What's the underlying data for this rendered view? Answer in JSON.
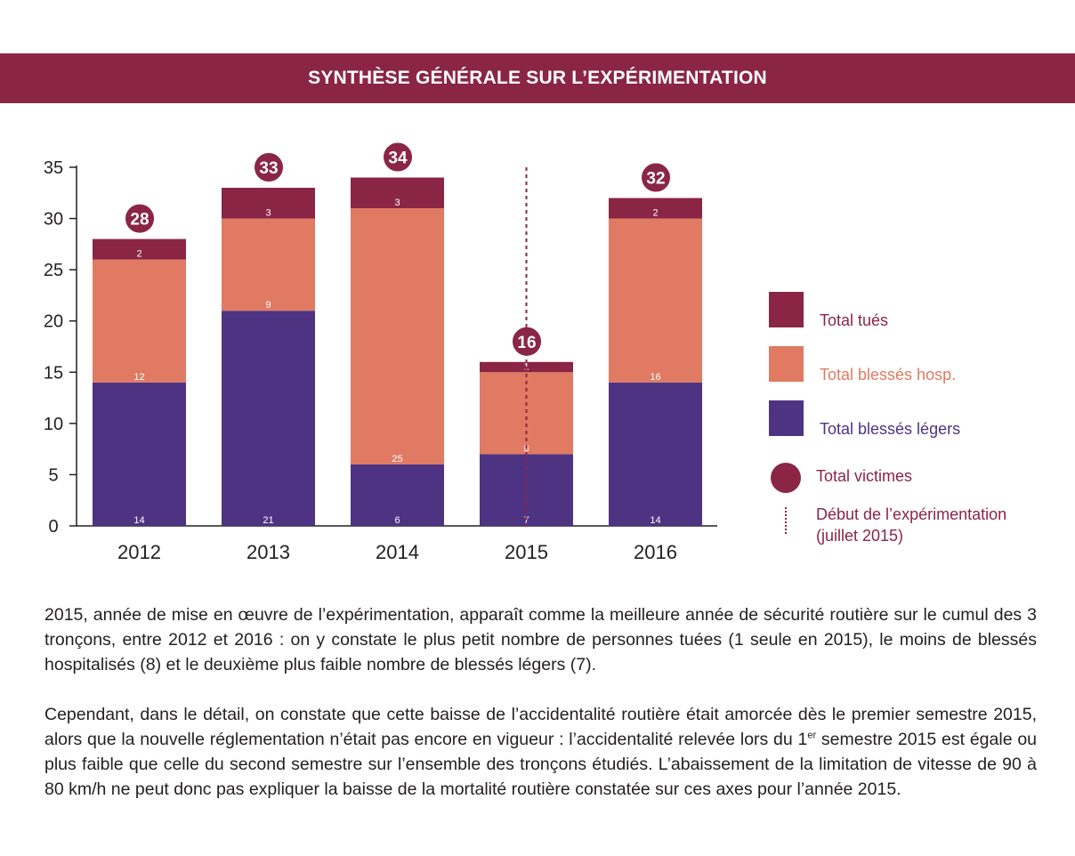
{
  "header": {
    "title": "SYNTHÈSE GÉNÉRALE SUR L’EXPÉRIMENTATION"
  },
  "chart_data": {
    "type": "bar",
    "stacked": true,
    "categories": [
      "2012",
      "2013",
      "2014",
      "2015",
      "2016"
    ],
    "series": [
      {
        "name": "Total blessés légers",
        "color": "#4e3382",
        "values": [
          14,
          21,
          6,
          7,
          14
        ]
      },
      {
        "name": "Total blessés hosp.",
        "color": "#e17a62",
        "values": [
          12,
          9,
          25,
          8,
          16
        ]
      },
      {
        "name": "Total tués",
        "color": "#8a2545",
        "values": [
          2,
          3,
          3,
          1,
          2
        ]
      }
    ],
    "totals": {
      "name": "Total victimes",
      "color": "#8a2545",
      "values": [
        28,
        33,
        34,
        16,
        32
      ]
    },
    "y_ticks": [
      "0",
      "5",
      "10",
      "15",
      "20",
      "25",
      "30",
      "35"
    ],
    "ylim": [
      0,
      35
    ],
    "annotation": {
      "label": "Début de l’expérimentation (juillet 2015)",
      "label_lines": [
        "Début de l’expérimentation",
        "(juillet 2015)"
      ],
      "position": "2015",
      "style": "dotted-vertical-line"
    },
    "legend_position": "right",
    "grid": false
  },
  "legend": {
    "items": [
      {
        "label": "Total tués",
        "color": "#8a2545",
        "text_color": "#8a2545"
      },
      {
        "label": "Total blessés hosp.",
        "color": "#e17a62",
        "text_color": "#e17a62"
      },
      {
        "label": "Total blessés légers",
        "color": "#4e3382",
        "text_color": "#4e3382"
      },
      {
        "label": "Total victimes",
        "color": "#8a2545",
        "text_color": "#8a2545"
      }
    ]
  },
  "body": {
    "paragraph1": [
      "2015, année de mise en œuvre de l’expérimentation, apparaît comme la meilleure année de sécurité routière",
      "sur le cumul des 3 tronçons, entre 2012 et 2016 : on y constate le plus petit nombre de personnes tuées (1",
      "seule en 2015), le moins de blessés hospitalisés (8) et le deuxième plus faible nombre de blessés légers (7)."
    ],
    "paragraph2": {
      "line1": "Cependant, dans le détail, on constate que cette baisse de l’accidentalité routière était amorcée dès le premier",
      "line2": "semestre 2015, alors que la nouvelle réglementation n’était pas encore en vigueur : l’accidentalité relevée",
      "line3_pre": "lors du 1",
      "line3_sup": "er",
      "line3_post": " semestre 2015 est égale ou plus faible que celle du second semestre sur l’ensemble des tronçons",
      "line4": "étudiés. L’abaissement de la limitation de vitesse de 90 à 80 km/h ne peut donc pas expliquer la baisse de la",
      "line5": "mortalité routière constatée sur ces axes pour l’année 2015."
    }
  }
}
